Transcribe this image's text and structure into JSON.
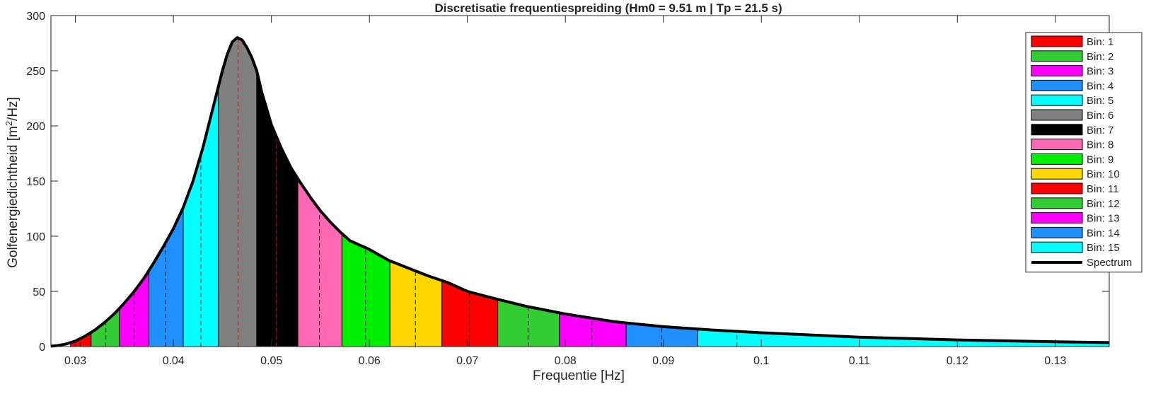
{
  "chart_data": {
    "type": "area",
    "title": "Discretisatie frequentiespreiding (Hm0 = 9.51 m | Tp = 21.5 s)",
    "xlabel": "Frequentie [Hz]",
    "ylabel_main": "Golfenergiedichtheid [m",
    "ylabel_sup": "2",
    "ylabel_tail": "/Hz]",
    "xlim": [
      0.0275,
      0.1355
    ],
    "ylim": [
      0,
      300
    ],
    "xticks": [
      0.03,
      0.04,
      0.05,
      0.06,
      0.07,
      0.08,
      0.09,
      0.1,
      0.11,
      0.12,
      0.13
    ],
    "xtick_labels": [
      "0.03",
      "0.04",
      "0.05",
      "0.06",
      "0.07",
      "0.08",
      "0.09",
      "0.1",
      "0.11",
      "0.12",
      "0.13"
    ],
    "yticks": [
      0,
      50,
      100,
      150,
      200,
      250,
      300
    ],
    "ytick_labels": [
      "0",
      "50",
      "100",
      "150",
      "200",
      "250",
      "300"
    ],
    "legend_position": "top-right",
    "spectrum": {
      "name": "Spectrum",
      "color": "#000000",
      "x": [
        0.0275,
        0.028,
        0.029,
        0.03,
        0.031,
        0.032,
        0.033,
        0.034,
        0.035,
        0.036,
        0.037,
        0.038,
        0.039,
        0.04,
        0.041,
        0.042,
        0.043,
        0.044,
        0.045,
        0.0455,
        0.046,
        0.0465,
        0.047,
        0.0475,
        0.048,
        0.0485,
        0.049,
        0.05,
        0.051,
        0.052,
        0.053,
        0.054,
        0.055,
        0.056,
        0.057,
        0.058,
        0.06,
        0.062,
        0.064,
        0.066,
        0.068,
        0.07,
        0.073,
        0.076,
        0.08,
        0.085,
        0.09,
        0.095,
        0.1,
        0.11,
        0.12,
        0.13,
        0.1355
      ],
      "y": [
        0.3,
        0.7,
        2.2,
        5.0,
        9.5,
        15.0,
        22.0,
        30.0,
        39.5,
        50.0,
        62.0,
        76.0,
        91.0,
        107.0,
        126.0,
        150.0,
        180.0,
        215.0,
        250.0,
        265.0,
        276.0,
        280.0,
        278.0,
        271.0,
        262.0,
        250.0,
        231.0,
        201.0,
        180.0,
        162.0,
        148.0,
        135.0,
        123.0,
        113.0,
        104.0,
        96.0,
        88.0,
        78.0,
        71.0,
        64.0,
        58.0,
        50.0,
        43.0,
        36.5,
        29.5,
        22.5,
        18.0,
        15.0,
        12.5,
        8.5,
        6.0,
        4.3,
        3.6
      ]
    },
    "bins": [
      {
        "name": "Bin: 1",
        "color": "#ff0000",
        "from": 0.0295,
        "to": 0.0316,
        "center": 0.0305
      },
      {
        "name": "Bin: 2",
        "color": "#32cd32",
        "from": 0.0316,
        "to": 0.0345,
        "center": 0.0331
      },
      {
        "name": "Bin: 3",
        "color": "#ff00ff",
        "from": 0.0345,
        "to": 0.0375,
        "center": 0.036
      },
      {
        "name": "Bin: 4",
        "color": "#1e90ff",
        "from": 0.0375,
        "to": 0.041,
        "center": 0.0392
      },
      {
        "name": "Bin: 5",
        "color": "#00ffff",
        "from": 0.041,
        "to": 0.0446,
        "center": 0.0428
      },
      {
        "name": "Bin: 6",
        "color": "#808080",
        "from": 0.0446,
        "to": 0.0485,
        "center": 0.0466
      },
      {
        "name": "Bin: 7",
        "color": "#000000",
        "from": 0.0485,
        "to": 0.0527,
        "center": 0.0505
      },
      {
        "name": "Bin: 8",
        "color": "#ff69b4",
        "from": 0.0527,
        "to": 0.0572,
        "center": 0.0549
      },
      {
        "name": "Bin: 9",
        "color": "#00ee00",
        "from": 0.0572,
        "to": 0.0621,
        "center": 0.0596
      },
      {
        "name": "Bin: 10",
        "color": "#ffd700",
        "from": 0.0621,
        "to": 0.0674,
        "center": 0.0647
      },
      {
        "name": "Bin: 11",
        "color": "#ff0000",
        "from": 0.0674,
        "to": 0.0731,
        "center": 0.0702
      },
      {
        "name": "Bin: 12",
        "color": "#32cd32",
        "from": 0.0731,
        "to": 0.0794,
        "center": 0.0762
      },
      {
        "name": "Bin: 13",
        "color": "#ff00ff",
        "from": 0.0794,
        "to": 0.0862,
        "center": 0.0827
      },
      {
        "name": "Bin: 14",
        "color": "#1e90ff",
        "from": 0.0862,
        "to": 0.0935,
        "center": 0.0898
      },
      {
        "name": "Bin: 15",
        "color": "#00ffff",
        "from": 0.0935,
        "to": 0.1355,
        "center": 0.0975
      }
    ]
  }
}
